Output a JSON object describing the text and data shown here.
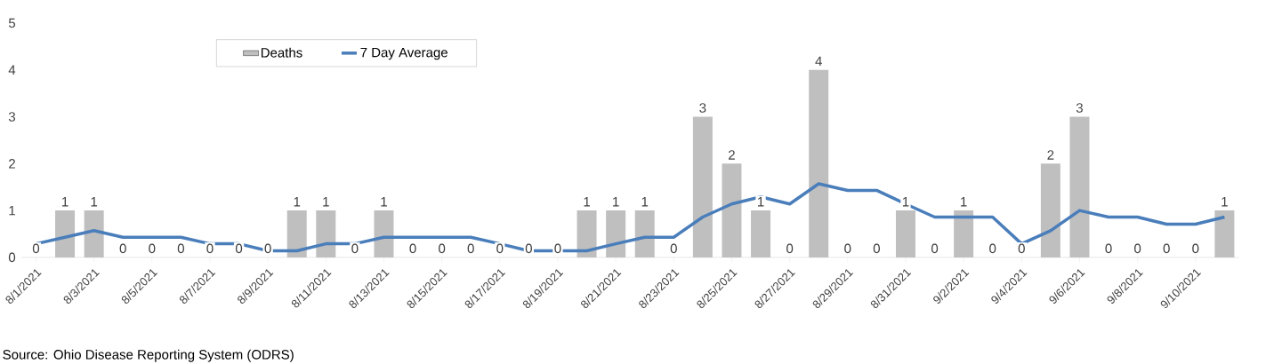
{
  "chart_data": {
    "type": "bar",
    "categories": [
      "8/1/2021",
      null,
      "8/3/2021",
      null,
      "8/5/2021",
      null,
      "8/7/2021",
      null,
      "8/9/2021",
      null,
      "8/11/2021",
      null,
      "8/13/2021",
      null,
      "8/15/2021",
      null,
      "8/17/2021",
      null,
      "8/19/2021",
      null,
      "8/21/2021",
      null,
      "8/23/2021",
      null,
      "8/25/2021",
      null,
      "8/27/2021",
      null,
      "8/29/2021",
      null,
      "8/31/2021",
      null,
      "9/2/2021",
      null,
      "9/4/2021",
      null,
      "9/6/2021",
      null,
      "9/8/2021",
      null,
      "9/10/2021",
      null
    ],
    "series": [
      {
        "name": "Deaths",
        "color": "#bfbfbf",
        "values": [
          0,
          1,
          1,
          0,
          0,
          0,
          0,
          0,
          0,
          1,
          1,
          0,
          1,
          0,
          0,
          0,
          0,
          0,
          0,
          1,
          1,
          1,
          0,
          3,
          2,
          1,
          0,
          4,
          0,
          0,
          1,
          0,
          1,
          0,
          0,
          2,
          3,
          0,
          0,
          0,
          0,
          1
        ],
        "value_labels": [
          "0",
          "1",
          "1",
          "0",
          "0",
          "0",
          "0",
          "0",
          "0",
          "1",
          "1",
          "0",
          "1",
          "0",
          "0",
          "0",
          "0",
          "0",
          "0",
          "1",
          "1",
          "1",
          "0",
          "3",
          "2",
          "1",
          "0",
          "4",
          "0",
          "0",
          "1",
          "0",
          "1",
          "0",
          "0",
          "2",
          "3",
          "0",
          "0",
          "0",
          "0",
          "1"
        ]
      },
      {
        "name": "7 Day Average",
        "type": "line",
        "color": "#4a7ebb",
        "values": [
          0.29,
          0.43,
          0.57,
          0.43,
          0.43,
          0.43,
          0.29,
          0.29,
          0.14,
          0.14,
          0.29,
          0.29,
          0.43,
          0.43,
          0.43,
          0.43,
          0.29,
          0.14,
          0.14,
          0.14,
          0.29,
          0.43,
          0.43,
          0.86,
          1.14,
          1.29,
          1.14,
          1.57,
          1.43,
          1.43,
          1.14,
          0.86,
          0.86,
          0.86,
          0.29,
          0.57,
          1.0,
          0.86,
          0.86,
          0.71,
          0.71,
          0.86
        ]
      }
    ],
    "ylim": [
      0,
      5
    ],
    "yticks": [
      0,
      1,
      2,
      3,
      4,
      5
    ],
    "legend": "top left",
    "annotations": [
      "Source:  Ohio Disease Reporting System (ODRS)"
    ]
  }
}
